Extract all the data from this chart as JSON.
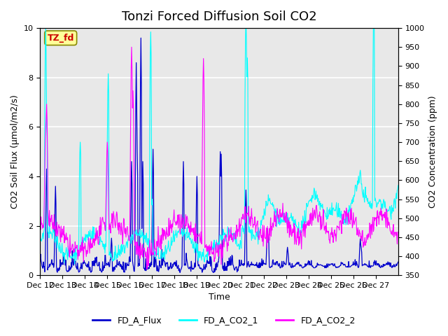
{
  "title": "Tonzi Forced Diffusion Soil CO2",
  "xlabel": "Time",
  "ylabel_left": "CO2 Soil Flux (μmol/m2/s)",
  "ylabel_right": "CO2 Concentration (ppm)",
  "ylim_left": [
    0.0,
    10.0
  ],
  "ylim_right": [
    350,
    1000
  ],
  "xtick_labels": [
    "Dec 12",
    "Dec 13",
    "Dec 14",
    "Dec 15",
    "Dec 16",
    "Dec 17",
    "Dec 18",
    "Dec 19",
    "Dec 20",
    "Dec 21",
    "Dec 22",
    "Dec 23",
    "Dec 24",
    "Dec 25",
    "Dec 26",
    "Dec 27"
  ],
  "color_flux": "#0000CD",
  "color_co2_1": "#00FFFF",
  "color_co2_2": "#FF00FF",
  "legend_labels": [
    "FD_A_Flux",
    "FD_A_CO2_1",
    "FD_A_CO2_2"
  ],
  "tag_text": "TZ_fd",
  "tag_bg": "#FFFF99",
  "tag_fg": "#CC0000",
  "bg_color": "#E8E8E8",
  "grid_color": "#FFFFFF",
  "title_fontsize": 13,
  "label_fontsize": 9,
  "tick_fontsize": 8,
  "legend_fontsize": 9,
  "right_yticks": [
    350,
    400,
    450,
    500,
    550,
    600,
    650,
    700,
    750,
    800,
    850,
    900,
    950,
    1000
  ]
}
